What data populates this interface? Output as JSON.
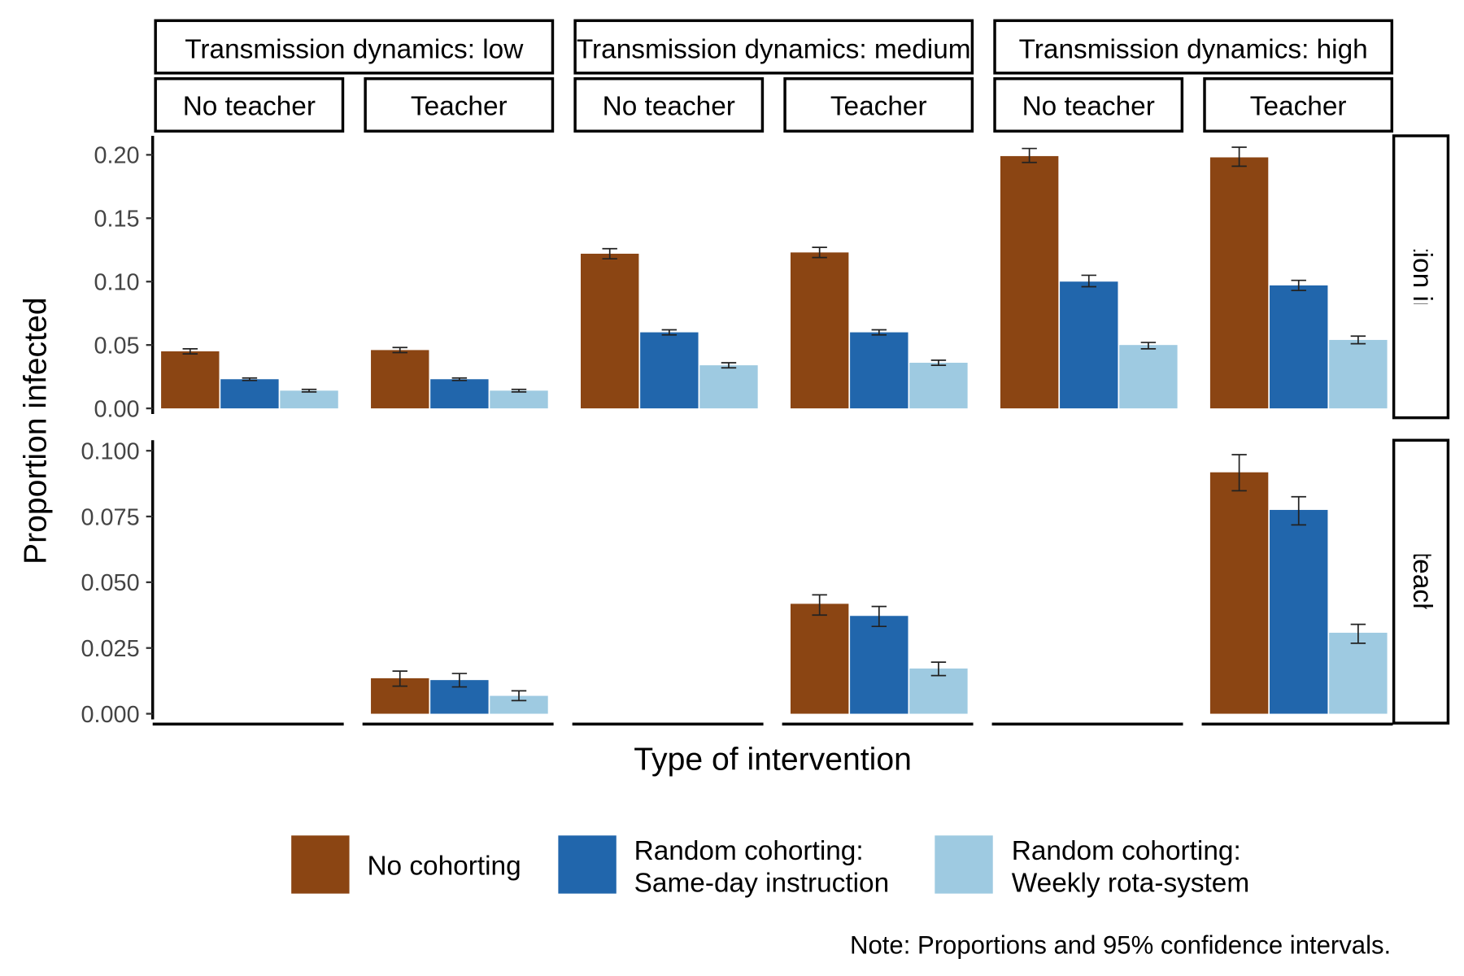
{
  "chart_data": {
    "type": "bar",
    "xlabel": "Type of intervention",
    "ylabel": "Proportion infected",
    "note": "Note: Proportions and 95% confidence intervals.",
    "grid": false,
    "legend_position": "bottom",
    "col_facets": [
      "Transmission dynamics: low",
      "Transmission dynamics: medium",
      "Transmission dynamics: high"
    ],
    "sub_facets": [
      "No teacher",
      "Teacher"
    ],
    "row_facets": [
      {
        "label": "Proportion infected",
        "ylim": [
          0,
          0.215
        ],
        "ticks": [
          "0.00",
          "0.05",
          "0.10",
          "0.15",
          "0.20"
        ],
        "tick_values": [
          0,
          0.05,
          0.1,
          0.15,
          0.2
        ]
      },
      {
        "label": "Proportion teacher infected",
        "ylim": [
          0,
          0.104
        ],
        "ticks": [
          "0.000",
          "0.025",
          "0.050",
          "0.075",
          "0.100"
        ],
        "tick_values": [
          0,
          0.025,
          0.05,
          0.075,
          0.1
        ]
      }
    ],
    "series": [
      {
        "name": "No cohorting",
        "label_lines": [
          "No cohorting"
        ],
        "color": "#8B4513"
      },
      {
        "name": "Random cohorting: Same-day instruction",
        "label_lines": [
          "Random cohorting:",
          "Same-day instruction"
        ],
        "color": "#2166AC"
      },
      {
        "name": "Random cohorting: Weekly rota-system",
        "label_lines": [
          "Random cohorting:",
          "Weekly rota-system"
        ],
        "color": "#9ECAE1"
      }
    ],
    "panels": [
      {
        "dynamics": "low",
        "teacher": "No teacher",
        "infected": [
          [
            0.045,
            0.043,
            0.047
          ],
          [
            0.023,
            0.022,
            0.024
          ],
          [
            0.014,
            0.013,
            0.015
          ]
        ],
        "teacher_infected": null
      },
      {
        "dynamics": "low",
        "teacher": "Teacher",
        "infected": [
          [
            0.046,
            0.044,
            0.048
          ],
          [
            0.023,
            0.022,
            0.024
          ],
          [
            0.014,
            0.013,
            0.015
          ]
        ],
        "teacher_infected": [
          [
            0.0135,
            0.0105,
            0.0162
          ],
          [
            0.0128,
            0.0102,
            0.0153
          ],
          [
            0.0068,
            0.005,
            0.0087
          ]
        ]
      },
      {
        "dynamics": "medium",
        "teacher": "No teacher",
        "infected": [
          [
            0.122,
            0.118,
            0.126
          ],
          [
            0.06,
            0.058,
            0.062
          ],
          [
            0.034,
            0.032,
            0.036
          ]
        ],
        "teacher_infected": null
      },
      {
        "dynamics": "medium",
        "teacher": "Teacher",
        "infected": [
          [
            0.123,
            0.119,
            0.127
          ],
          [
            0.06,
            0.058,
            0.062
          ],
          [
            0.036,
            0.034,
            0.038
          ]
        ],
        "teacher_infected": [
          [
            0.0418,
            0.0375,
            0.0452
          ],
          [
            0.0372,
            0.0332,
            0.0408
          ],
          [
            0.0172,
            0.0145,
            0.0196
          ]
        ]
      },
      {
        "dynamics": "high",
        "teacher": "No teacher",
        "infected": [
          [
            0.199,
            0.194,
            0.205
          ],
          [
            0.1,
            0.096,
            0.105
          ],
          [
            0.05,
            0.047,
            0.052
          ]
        ],
        "teacher_infected": null
      },
      {
        "dynamics": "high",
        "teacher": "Teacher",
        "infected": [
          [
            0.198,
            0.191,
            0.206
          ],
          [
            0.097,
            0.093,
            0.101
          ],
          [
            0.054,
            0.051,
            0.057
          ]
        ],
        "teacher_infected": [
          [
            0.0918,
            0.0848,
            0.0985
          ],
          [
            0.0775,
            0.0718,
            0.0825
          ],
          [
            0.0308,
            0.0268,
            0.034
          ]
        ]
      }
    ]
  }
}
